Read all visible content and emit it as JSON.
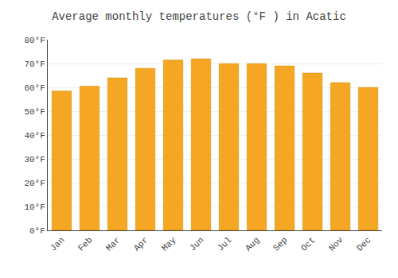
{
  "chart_data": {
    "type": "bar",
    "title": "Average monthly temperatures (°F ) in Acatic",
    "categories": [
      "Jan",
      "Feb",
      "Mar",
      "Apr",
      "May",
      "Jun",
      "Jul",
      "Aug",
      "Sep",
      "Oct",
      "Nov",
      "Dec"
    ],
    "values": [
      58.5,
      60.5,
      64.0,
      68.0,
      71.5,
      72.0,
      70.0,
      70.0,
      69.0,
      66.0,
      62.0,
      60.0
    ],
    "color": "#F5A623",
    "ylim": [
      0,
      80
    ],
    "yticks": [
      {
        "value": 0,
        "label": "0°F"
      },
      {
        "value": 10,
        "label": "10°F"
      },
      {
        "value": 20,
        "label": "20°F"
      },
      {
        "value": 30,
        "label": "30°F"
      },
      {
        "value": 40,
        "label": "40°F"
      },
      {
        "value": 50,
        "label": "50°F"
      },
      {
        "value": 60,
        "label": "60°F"
      },
      {
        "value": 70,
        "label": "70°F"
      },
      {
        "value": 80,
        "label": "80°F"
      }
    ],
    "grid": true
  }
}
